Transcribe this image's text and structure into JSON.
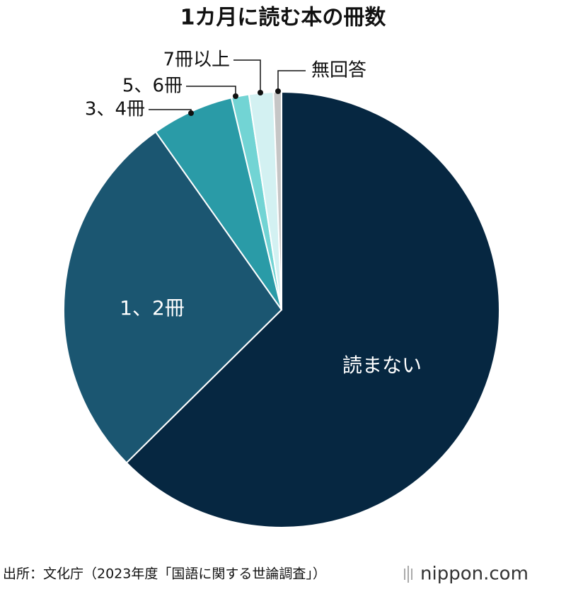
{
  "chart_data": {
    "type": "pie",
    "title": "1カ月に読む本の冊数",
    "categories": [
      "読まない",
      "1、2冊",
      "3、4冊",
      "5、6冊",
      "7冊以上",
      "無回答"
    ],
    "values": [
      62.6,
      27.6,
      6.1,
      1.3,
      1.8,
      0.6
    ],
    "colors": [
      "#062741",
      "#1b5671",
      "#2a9ba7",
      "#72d4d4",
      "#d3f1f2",
      "#c6c6c6"
    ],
    "source": "出所：文化庁（2023年度「国語に関する世論調査」）",
    "logo": "nippon.com"
  }
}
